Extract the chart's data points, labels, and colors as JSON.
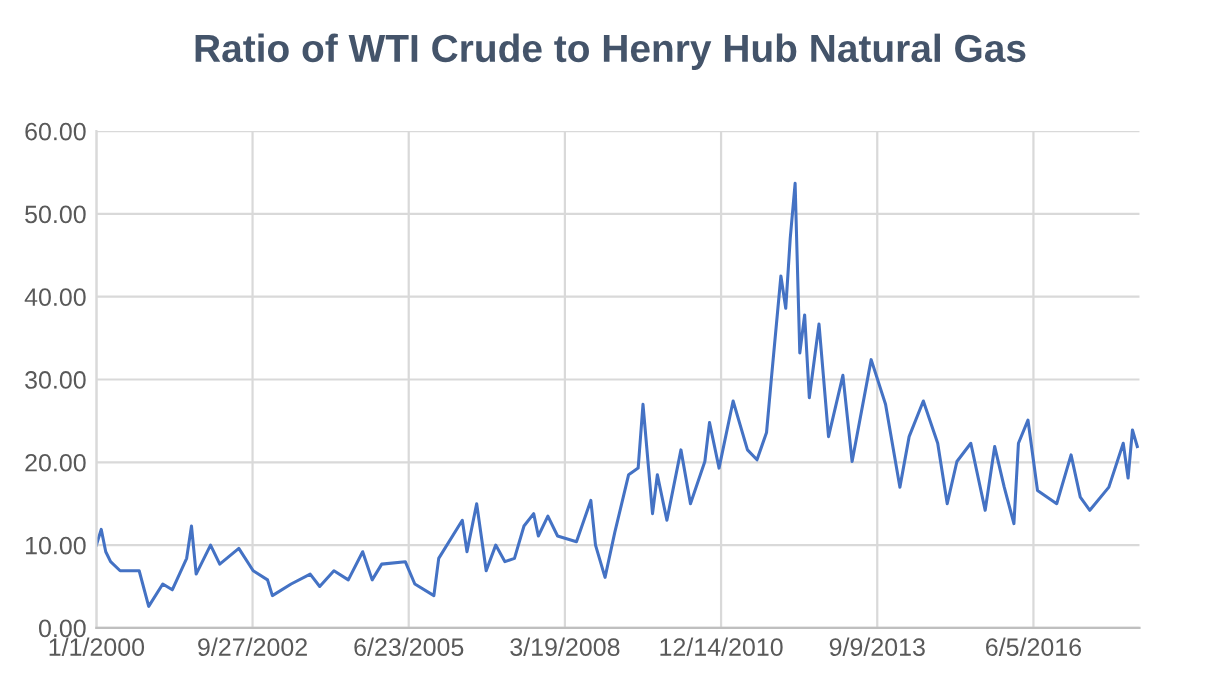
{
  "chart_data": {
    "type": "line",
    "title": "Ratio of WTI Crude to Henry Hub Natural Gas",
    "x": [
      "2000-01",
      "2000-02",
      "2000-03",
      "2000-04",
      "2000-06",
      "2000-10",
      "2000-12",
      "2001-03",
      "2001-05",
      "2001-08",
      "2001-09",
      "2001-10",
      "2002-01",
      "2002-03",
      "2002-07",
      "2002-10",
      "2003-01",
      "2003-02",
      "2003-06",
      "2003-10",
      "2003-12",
      "2004-03",
      "2004-06",
      "2004-09",
      "2004-11",
      "2005-01",
      "2005-06",
      "2005-08",
      "2005-12",
      "2006-01",
      "2006-06",
      "2006-07",
      "2006-09",
      "2006-11",
      "2007-01",
      "2007-03",
      "2007-05",
      "2007-07",
      "2007-09",
      "2007-10",
      "2007-12",
      "2008-02",
      "2008-06",
      "2008-09",
      "2008-10",
      "2008-12",
      "2009-02",
      "2009-05",
      "2009-07",
      "2009-08",
      "2009-10",
      "2009-11",
      "2010-01",
      "2010-04",
      "2010-06",
      "2010-09",
      "2010-10",
      "2010-12",
      "2011-03",
      "2011-06",
      "2011-08",
      "2011-10",
      "2011-11",
      "2012-01",
      "2012-02",
      "2012-03",
      "2012-04",
      "2012-05",
      "2012-06",
      "2012-07",
      "2012-09",
      "2012-11",
      "2013-02",
      "2013-04",
      "2013-08",
      "2013-11",
      "2014-02",
      "2014-04",
      "2014-07",
      "2014-10",
      "2014-12",
      "2015-02",
      "2015-05",
      "2015-08",
      "2015-10",
      "2015-12",
      "2016-02",
      "2016-03",
      "2016-05",
      "2016-07",
      "2016-11",
      "2017-02",
      "2017-04",
      "2017-06",
      "2017-10",
      "2018-01",
      "2018-02",
      "2018-03",
      "2018-04"
    ],
    "series": [
      {
        "color": "#4472c4",
        "values": [
          10.0,
          11.9,
          9.2,
          8.0,
          6.9,
          6.9,
          2.6,
          5.3,
          4.6,
          8.4,
          12.3,
          6.5,
          10.0,
          7.7,
          9.6,
          6.9,
          5.8,
          3.9,
          5.3,
          6.5,
          5.0,
          6.9,
          5.8,
          9.2,
          5.8,
          7.7,
          8.0,
          5.3,
          3.9,
          8.4,
          13.0,
          9.2,
          15.0,
          6.9,
          10.0,
          8.0,
          8.4,
          12.3,
          13.8,
          11.1,
          13.5,
          11.1,
          10.4,
          15.4,
          10.0,
          6.1,
          11.5,
          18.5,
          19.3,
          27.0,
          13.8,
          18.5,
          13.0,
          21.5,
          15.0,
          20.1,
          24.8,
          19.3,
          27.4,
          21.5,
          20.3,
          23.6,
          30.1,
          42.5,
          38.6,
          47.1,
          53.7,
          33.2,
          37.8,
          27.8,
          36.7,
          23.1,
          30.5,
          20.1,
          32.4,
          27.0,
          17.0,
          23.1,
          27.4,
          22.3,
          15.0,
          20.1,
          22.3,
          14.2,
          21.9,
          17.0,
          12.6,
          22.3,
          25.1,
          16.6,
          15.0,
          20.9,
          15.8,
          14.2,
          17.0,
          22.3,
          18.1,
          23.9,
          21.9
        ]
      }
    ],
    "xlim": [
      "2000-01-01",
      "2018-04-15"
    ],
    "xticks": [
      {
        "value": "2000-01-01",
        "label": "1/1/2000"
      },
      {
        "value": "2002-09-27",
        "label": "9/27/2002"
      },
      {
        "value": "2005-06-23",
        "label": "6/23/2005"
      },
      {
        "value": "2008-03-19",
        "label": "3/19/2008"
      },
      {
        "value": "2010-12-14",
        "label": "12/14/2010"
      },
      {
        "value": "2013-09-09",
        "label": "9/9/2013"
      },
      {
        "value": "2016-06-05",
        "label": "6/5/2016"
      }
    ],
    "ylim": [
      0,
      60
    ],
    "yticks": [
      {
        "value": 0,
        "label": "0.00"
      },
      {
        "value": 10,
        "label": "10.00"
      },
      {
        "value": 20,
        "label": "20.00"
      },
      {
        "value": 30,
        "label": "30.00"
      },
      {
        "value": 40,
        "label": "40.00"
      },
      {
        "value": 50,
        "label": "50.00"
      },
      {
        "value": 60,
        "label": "60.00"
      }
    ],
    "grid": true,
    "legend": false,
    "marker": "none",
    "line_style": "solid"
  }
}
